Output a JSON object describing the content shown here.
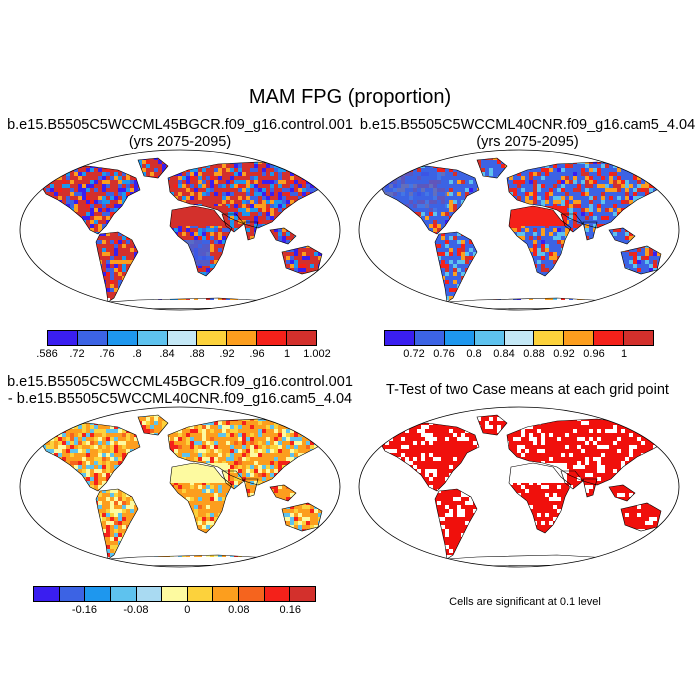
{
  "main_title": "MAM FPG (proportion)",
  "panels": [
    {
      "title_line1": "b.e15.B5505C5WCCML45BGCR.f09_g16.control.001",
      "title_line2": "(yrs 2075-2095)",
      "map_style": "proportion_a",
      "colorbar": {
        "colors": [
          "#3a1ef0",
          "#3c63e4",
          "#1e97ee",
          "#5ec2ee",
          "#c4e8f6",
          "#fcd23c",
          "#fc9e1e",
          "#f4211a",
          "#d3302c"
        ],
        "labels": [
          ".586",
          ".72",
          ".76",
          ".8",
          ".84",
          ".88",
          ".92",
          ".96",
          "1",
          "1.002"
        ]
      }
    },
    {
      "title_line1": "b.e15.B5505C5WCCML40CNR.f09_g16.cam5_4.04",
      "title_line2": "(yrs 2075-2095)",
      "map_style": "proportion_b",
      "colorbar": {
        "colors": [
          "#3a1ef0",
          "#3c63e4",
          "#1e97ee",
          "#5ec2ee",
          "#c4e8f6",
          "#fcd23c",
          "#fc9e1e",
          "#f4211a",
          "#d3302c"
        ],
        "labels": [
          "0.72",
          "0.76",
          "0.8",
          "0.84",
          "0.88",
          "0.92",
          "0.96",
          "1"
        ]
      }
    },
    {
      "title_line1": "b.e15.B5505C5WCCML45BGCR.f09_g16.control.001",
      "title_line2": "- b.e15.B5505C5WCCML40CNR.f09_g16.cam5_4.04",
      "map_style": "difference",
      "colorbar": {
        "colors": [
          "#3a1ef0",
          "#3c63e4",
          "#1e97ee",
          "#5ec2ee",
          "#a9daf2",
          "#fdfaa0",
          "#fcd23c",
          "#fc9e1e",
          "#f5641e",
          "#f4211a",
          "#d3302c"
        ],
        "labels": [
          "-0.16",
          "-0.08",
          "0",
          "0.08",
          "0.16"
        ]
      }
    },
    {
      "title_line1": "T-Test of two Case means at each grid point",
      "title_line2": "",
      "map_style": "significance"
    }
  ],
  "note": "Cells are significant at 0.1 level"
}
